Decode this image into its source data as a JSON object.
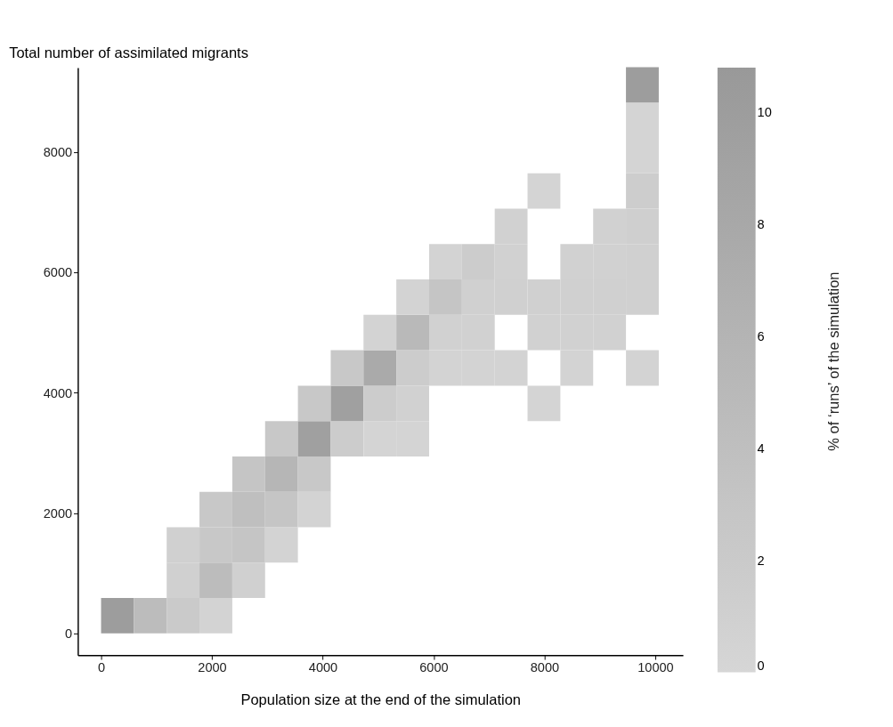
{
  "chart_data": {
    "type": "scatter",
    "marker": "square",
    "xlabel": "Population size at the end of the simulation",
    "ylabel": "Total number of assimilated migrants",
    "clabel": "% of ‘runs’ of the simulation",
    "xlim": [
      -420,
      10500
    ],
    "xticks": [
      0,
      2000,
      4000,
      6000,
      8000,
      10000
    ],
    "ylim": [
      -360,
      9400
    ],
    "yticks": [
      0,
      2000,
      4000,
      6000,
      8000
    ],
    "clim": [
      0,
      10.8
    ],
    "cticks": [
      0,
      2,
      4,
      6,
      8,
      10
    ],
    "grid": false,
    "x": [
      296,
      888,
      1480,
      2072,
      1480,
      2072,
      2664,
      1480,
      2072,
      2664,
      3256,
      2072,
      2664,
      3256,
      3848,
      2664,
      3256,
      3848,
      3256,
      3848,
      4440,
      5032,
      5624,
      3848,
      4440,
      5032,
      5624,
      7992,
      4440,
      5032,
      5624,
      6216,
      6808,
      7400,
      8584,
      9768,
      5032,
      5624,
      6216,
      6808,
      7992,
      8584,
      9176,
      5624,
      6216,
      6808,
      7400,
      7992,
      8584,
      9176,
      9768,
      6216,
      6808,
      7400,
      8584,
      9176,
      9768,
      7400,
      9176,
      9768,
      7992,
      9768,
      9768,
      9768,
      9768
    ],
    "values": [
      294,
      294,
      294,
      294,
      882,
      882,
      882,
      1470,
      1470,
      1470,
      1470,
      2058,
      2058,
      2058,
      2058,
      2646,
      2646,
      2646,
      3234,
      3234,
      3234,
      3234,
      3234,
      3822,
      3822,
      3822,
      3822,
      3822,
      4410,
      4410,
      4410,
      4410,
      4410,
      4410,
      4410,
      4410,
      4998,
      4998,
      4998,
      4998,
      4998,
      4998,
      4998,
      5586,
      5586,
      5586,
      5586,
      5586,
      5586,
      5586,
      5586,
      6174,
      6174,
      6174,
      6174,
      6174,
      6174,
      6762,
      6762,
      6762,
      7350,
      7350,
      7938,
      8526,
      9114
    ],
    "cvalues": [
      10,
      4.5,
      2,
      0.5,
      1,
      4.5,
      1,
      1,
      2.5,
      3,
      0.5,
      2.5,
      4,
      3,
      0.5,
      3,
      5.5,
      2.5,
      2.5,
      9.5,
      1.8,
      0.3,
      0.3,
      2.5,
      9.5,
      1.8,
      0.8,
      0.4,
      2.5,
      7.8,
      1.8,
      0.5,
      0.5,
      0.5,
      0.5,
      0.5,
      0.5,
      5,
      0.8,
      0.8,
      0.8,
      0.8,
      0.8,
      0.5,
      3,
      1,
      1,
      1,
      1,
      1,
      1,
      0.5,
      1.8,
      0.8,
      0.8,
      0.8,
      1,
      0.8,
      0.8,
      1.2,
      0.4,
      1.5,
      0.3,
      0.3,
      10
    ]
  }
}
